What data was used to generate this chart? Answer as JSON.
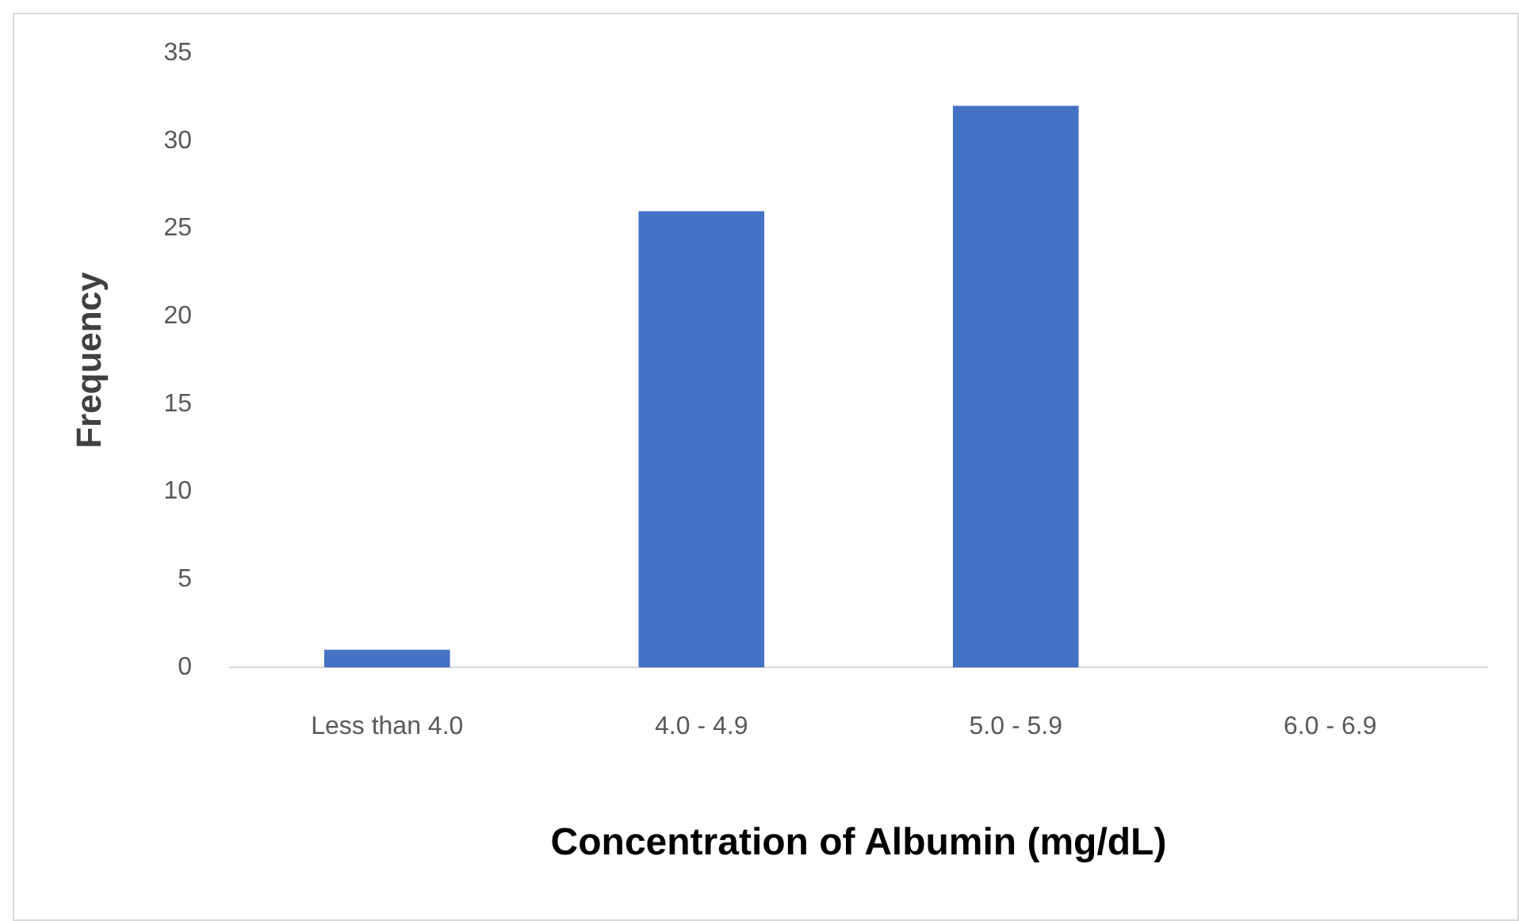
{
  "chart_data": {
    "type": "bar",
    "xlabel": "Concentration of Albumin (mg/dL)",
    "ylabel": "Frequency",
    "categories": [
      "Less than 4.0",
      "4.0 - 4.9",
      "5.0 - 5.9",
      "6.0 - 6.9"
    ],
    "values": [
      1,
      26,
      32,
      0
    ],
    "color": "#4472c4",
    "ylim": [
      0,
      35
    ],
    "yticks": [
      0,
      5,
      10,
      15,
      20,
      25,
      30,
      35
    ],
    "grid": false,
    "legend": false
  }
}
